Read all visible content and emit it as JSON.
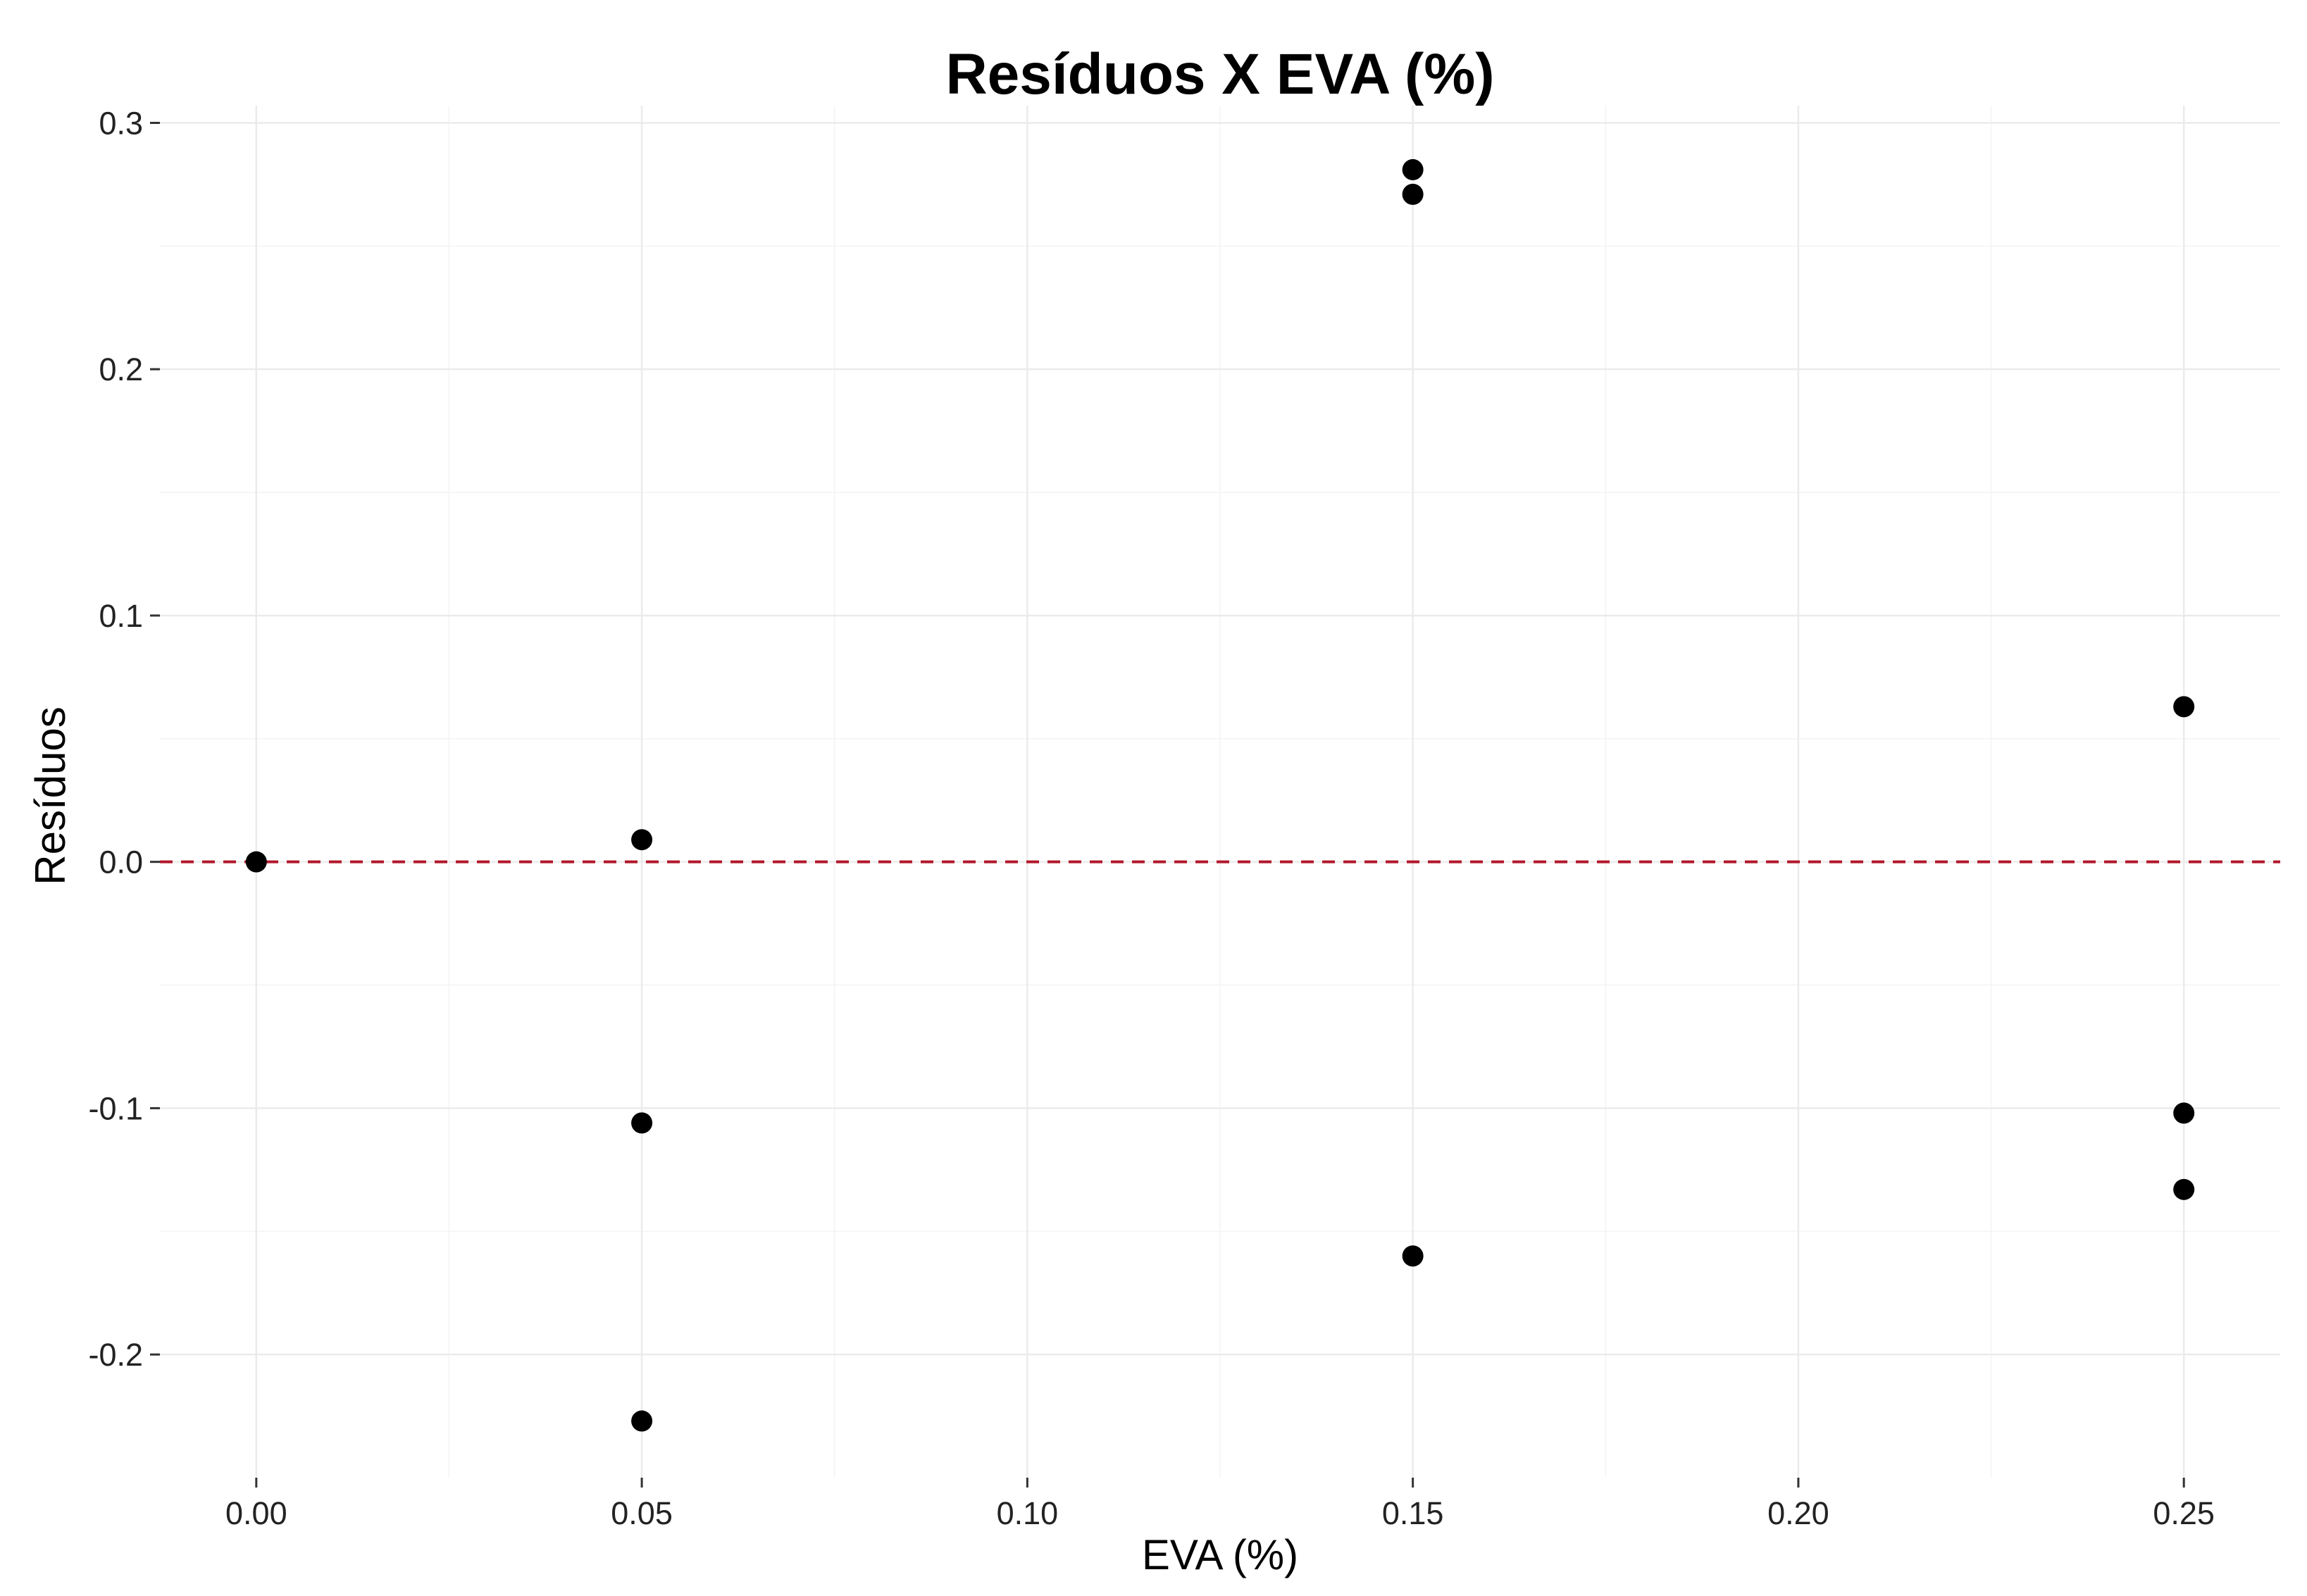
{
  "chart_data": {
    "type": "scatter",
    "title": "Resíduos X EVA (%)",
    "xlabel": "EVA (%)",
    "ylabel": "Resíduos",
    "xlim": [
      -0.0125,
      0.2625
    ],
    "ylim": [
      -0.25,
      0.307
    ],
    "x_ticks": [
      0.0,
      0.05,
      0.1,
      0.15,
      0.2,
      0.25
    ],
    "x_tick_labels": [
      "0.00",
      "0.05",
      "0.10",
      "0.15",
      "0.20",
      "0.25"
    ],
    "y_ticks": [
      -0.2,
      -0.1,
      0.0,
      0.1,
      0.2,
      0.3
    ],
    "y_tick_labels": [
      "-0.2",
      "-0.1",
      "0.0",
      "0.1",
      "0.2",
      "0.3"
    ],
    "grid": true,
    "point_color": "#000000",
    "reference_line": {
      "y": 0.0,
      "color": "#b2182b",
      "style": "dashed"
    },
    "points": [
      {
        "x": 0.0,
        "y": 0.0
      },
      {
        "x": 0.05,
        "y": 0.009
      },
      {
        "x": 0.05,
        "y": -0.106
      },
      {
        "x": 0.05,
        "y": -0.227
      },
      {
        "x": 0.15,
        "y": 0.281
      },
      {
        "x": 0.15,
        "y": 0.271
      },
      {
        "x": 0.15,
        "y": -0.16
      },
      {
        "x": 0.25,
        "y": 0.063
      },
      {
        "x": 0.25,
        "y": -0.102
      },
      {
        "x": 0.25,
        "y": -0.133
      }
    ]
  }
}
